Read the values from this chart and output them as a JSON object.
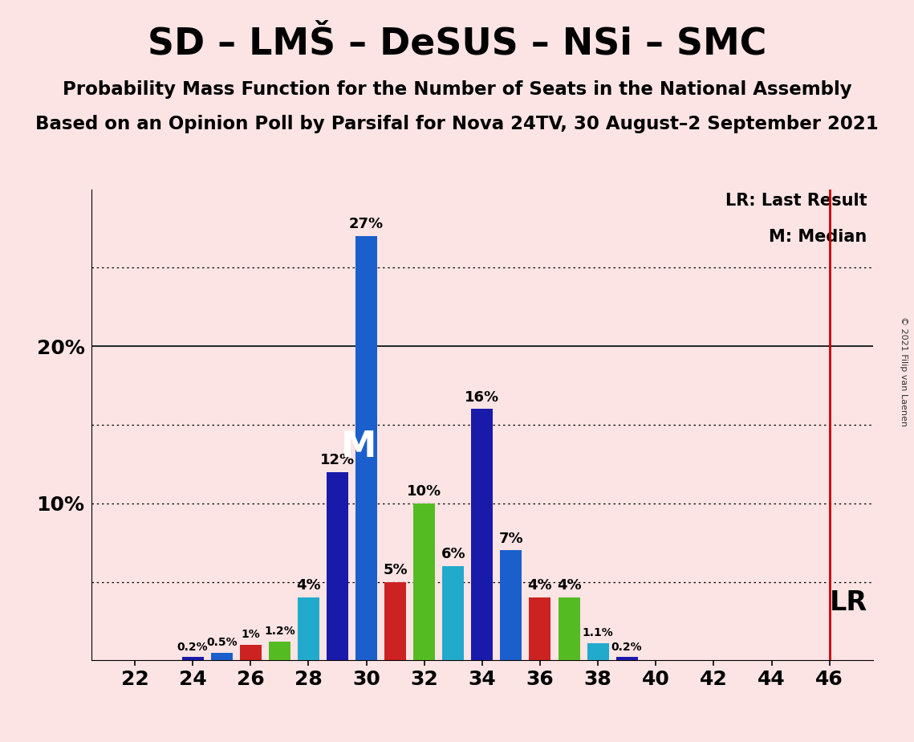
{
  "title": "SD – LMŠ – DeSUS – NSi – SMC",
  "subtitle1": "Probability Mass Function for the Number of Seats in the National Assembly",
  "subtitle2": "Based on an Opinion Poll by Parsifal for Nova 24TV, 30 August–2 September 2021",
  "copyright": "© 2021 Filip van Laenen",
  "background_color": "#fce4e4",
  "seats": [
    22,
    23,
    24,
    25,
    26,
    27,
    28,
    29,
    30,
    31,
    32,
    33,
    34,
    35,
    36,
    37,
    38,
    39,
    40,
    41,
    42,
    43,
    44,
    45,
    46
  ],
  "probabilities": [
    0.0,
    0.0,
    0.2,
    0.5,
    1.0,
    1.2,
    4.0,
    12.0,
    27.0,
    5.0,
    10.0,
    6.0,
    16.0,
    7.0,
    4.0,
    4.0,
    1.1,
    0.2,
    0.0,
    0.0,
    0.0,
    0.0,
    0.0,
    0.0,
    0.0
  ],
  "color_cycle": [
    "#22aacc",
    "#1a1aaa",
    "#1a5fcc",
    "#cc2222",
    "#55bb22"
  ],
  "median_seat": 30,
  "lr_seat": 46,
  "lr_color": "#cc0000",
  "bar_width": 0.75
}
